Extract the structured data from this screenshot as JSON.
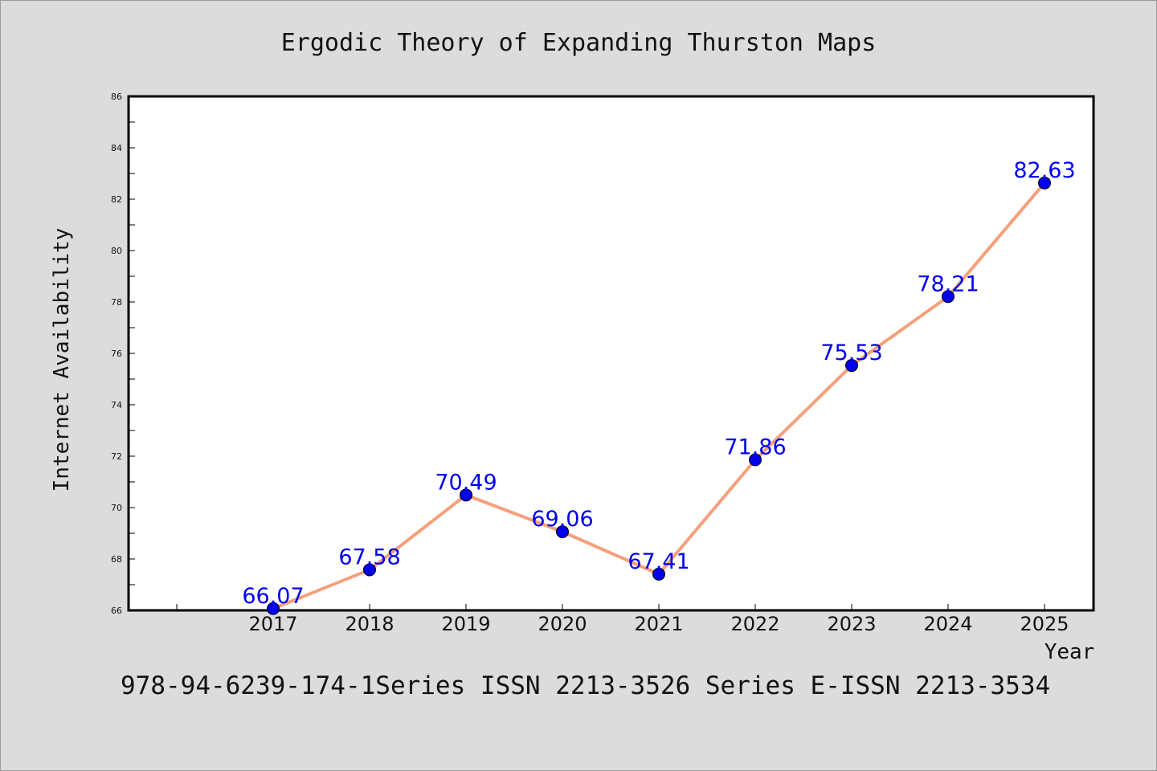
{
  "chart_data": {
    "type": "line",
    "title": "Ergodic Theory of Expanding Thurston Maps",
    "xlabel": "Year",
    "ylabel": "Internet Availability",
    "categories": [
      "2017",
      "2018",
      "2019",
      "2020",
      "2021",
      "2022",
      "2023",
      "2024",
      "2025"
    ],
    "series": [
      {
        "values": [
          66.07,
          67.58,
          70.49,
          69.06,
          67.41,
          71.86,
          75.53,
          78.21,
          82.63
        ],
        "line_color": "#f4a07c",
        "marker_color": "#0000ee"
      }
    ],
    "data_labels": [
      "66.07",
      "67.58",
      "70.49",
      "69.06",
      "67.41",
      "71.86",
      "75.53",
      "78.21",
      "82.63"
    ],
    "ylim": [
      66,
      86
    ],
    "yticks": [
      "66",
      "68",
      "70",
      "72",
      "74",
      "76",
      "78",
      "80",
      "82",
      "84",
      "86"
    ],
    "grid": false,
    "legend": "none"
  },
  "footer": {
    "text": "978-94-6239-174-1Series ISSN 2213-3526 Series E-ISSN 2213-3534"
  }
}
